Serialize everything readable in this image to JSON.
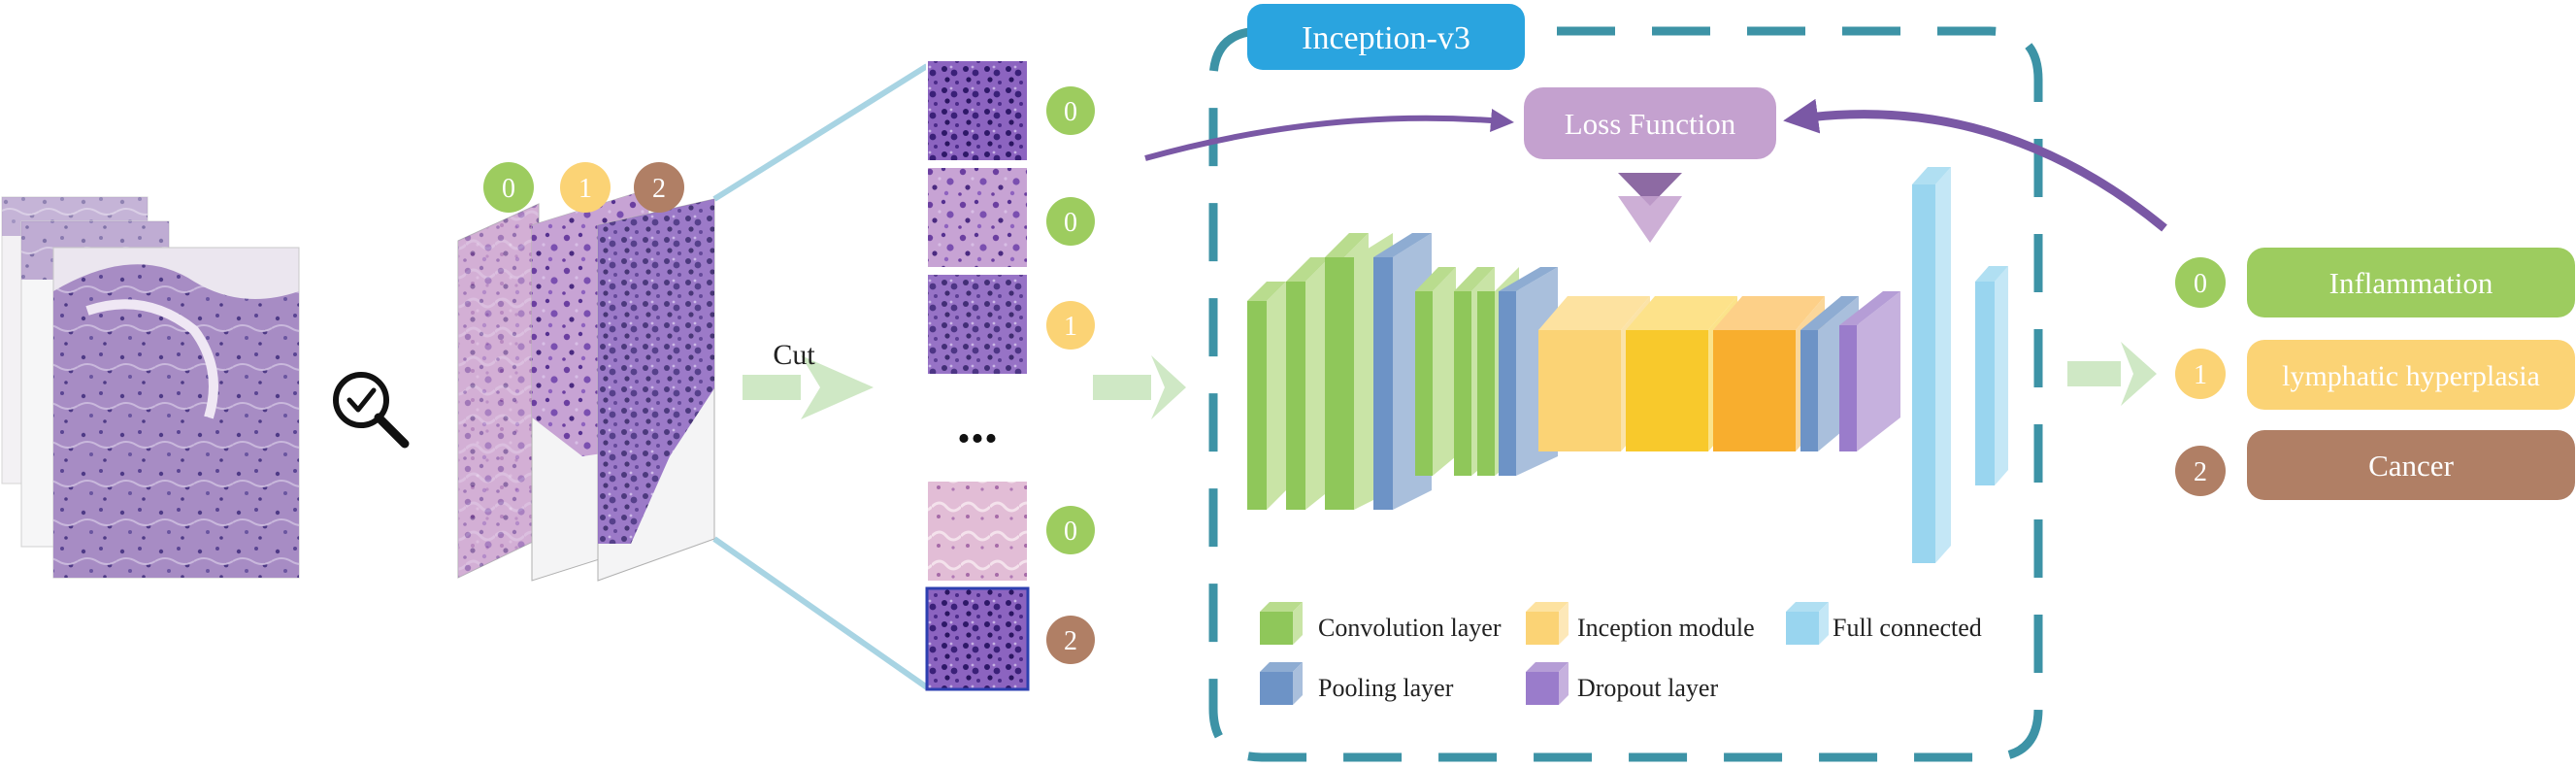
{
  "inception": {
    "title": "Inception-v3"
  },
  "loss": {
    "label": "Loss Function"
  },
  "cut": {
    "label": "Cut"
  },
  "ellipsis": "...",
  "colors": {
    "green": "#9dcc5f",
    "yellow": "#fbd375",
    "brown": "#b07f65",
    "blue": "#2aa4df",
    "frame": "#3d93a6",
    "loss": "#c4a1cf",
    "purple_arrow": "#7a58a5",
    "light_green_arrow": "#cfe8c5"
  },
  "selected_patch_labels": [
    {
      "label": "0",
      "color": "green"
    },
    {
      "label": "1",
      "color": "yellow"
    },
    {
      "label": "2",
      "color": "brown"
    }
  ],
  "patch_labels": [
    {
      "label": "0",
      "color": "green"
    },
    {
      "label": "0",
      "color": "green"
    },
    {
      "label": "1",
      "color": "yellow"
    },
    {
      "label": "0",
      "color": "green"
    },
    {
      "label": "2",
      "color": "brown"
    }
  ],
  "legend": [
    {
      "label": "Convolution layer",
      "color": "green"
    },
    {
      "label": "Inception module",
      "color": "yellow"
    },
    {
      "label": "Full connected",
      "color": "light_blue"
    },
    {
      "label": "Pooling layer",
      "color": "blue"
    },
    {
      "label": "Dropout layer",
      "color": "purple"
    }
  ],
  "outputs": [
    {
      "num": "0",
      "label": "Inflammation",
      "color": "green"
    },
    {
      "num": "1",
      "label": "lymphatic hyperplasia",
      "color": "yellow"
    },
    {
      "num": "2",
      "label": "Cancer",
      "color": "brown"
    }
  ]
}
